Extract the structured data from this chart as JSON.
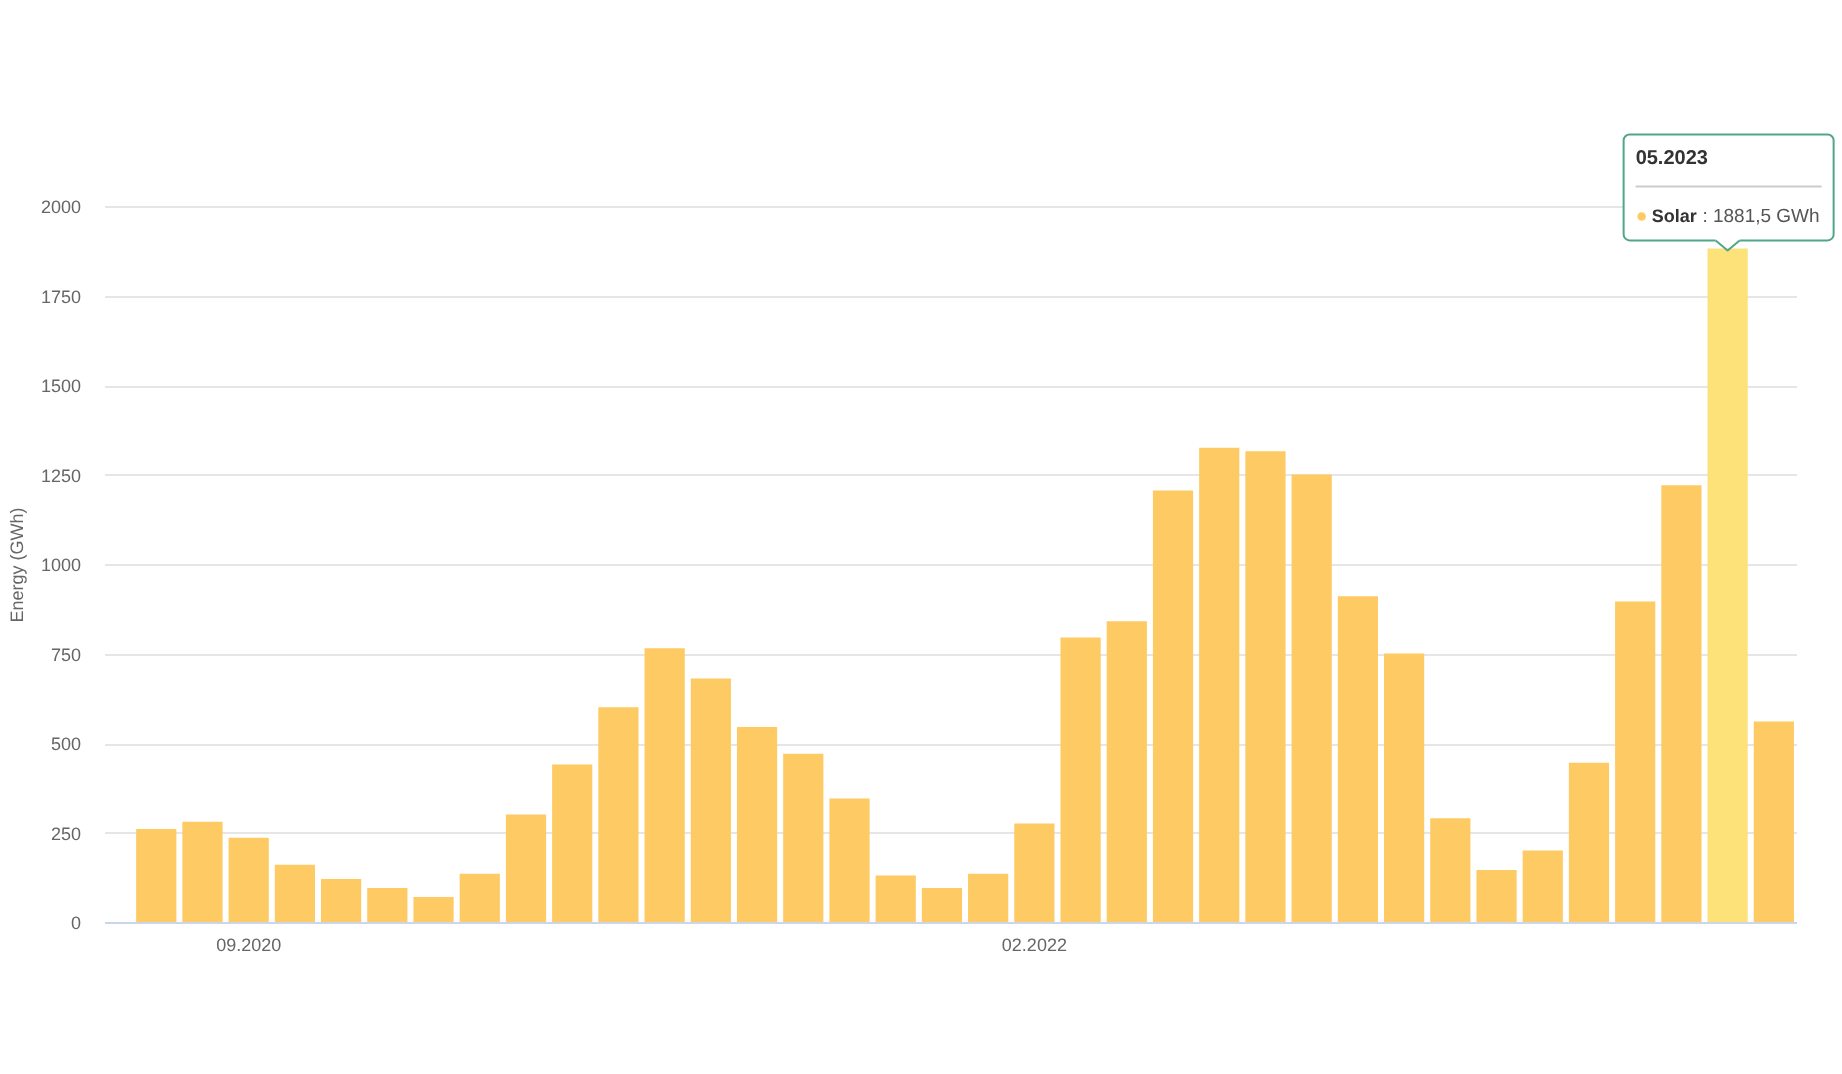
{
  "chart_data": {
    "type": "bar",
    "categories": [
      null,
      null,
      "09.2020",
      null,
      null,
      null,
      null,
      null,
      null,
      null,
      null,
      null,
      null,
      null,
      null,
      null,
      null,
      null,
      null,
      "02.2022",
      null,
      null,
      null,
      null,
      null,
      null,
      null,
      null,
      null,
      null,
      null,
      null,
      null,
      null,
      null,
      null
    ],
    "series": [
      {
        "name": "Solar",
        "color": "#feca64",
        "colors": [
          "#feca64",
          "#feca64",
          "#feca64",
          "#feca64",
          "#feca64",
          "#feca64",
          "#feca64",
          "#feca64",
          "#feca64",
          "#feca64",
          "#feca64",
          "#feca64",
          "#feca64",
          "#feca64",
          "#feca64",
          "#feca64",
          "#feca64",
          "#feca64",
          "#feca64",
          "#feca64",
          "#feca64",
          "#feca64",
          "#feca64",
          "#feca64",
          "#feca64",
          "#feca64",
          "#feca64",
          "#feca64",
          "#feca64",
          "#feca64",
          "#feca64",
          "#feca64",
          "#feca64",
          "#feca64",
          "#fde27a",
          "#feca64"
        ],
        "values": [
          260,
          280,
          235,
          160,
          120,
          95,
          70,
          135,
          300,
          440,
          600,
          765,
          680,
          545,
          470,
          345,
          130,
          95,
          135,
          275,
          795,
          840,
          1205,
          1325,
          1315,
          1250,
          910,
          750,
          290,
          145,
          200,
          445,
          895,
          1220,
          1881.5,
          560
        ],
        "value_labels": [
          null,
          null,
          null,
          null,
          null,
          null,
          null,
          null,
          null,
          null,
          null,
          null,
          null,
          null,
          null,
          null,
          null,
          null,
          null,
          null,
          null,
          null,
          null,
          null,
          null,
          null,
          null,
          null,
          null,
          null,
          null,
          null,
          null,
          null,
          ": 1881,5 GWh",
          null
        ]
      }
    ],
    "ylabel": "Energy (GWh)",
    "ylim": [
      0,
      2000
    ],
    "yticks": [
      0,
      250,
      500,
      750,
      1000,
      1250,
      1500,
      1750,
      2000
    ],
    "grid": "y",
    "annotations": [
      "05.2023"
    ]
  }
}
